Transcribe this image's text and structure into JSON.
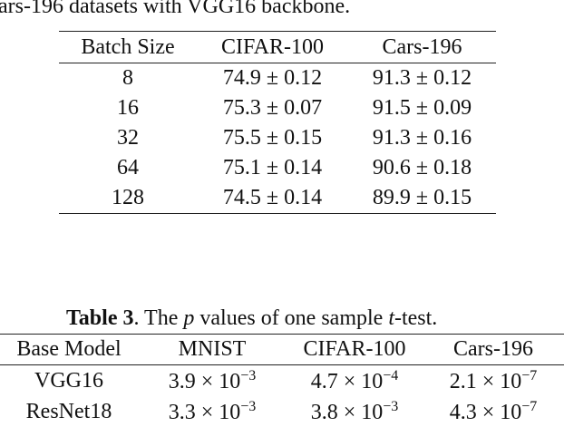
{
  "top_caption_fragment": "ars-196 datasets with VGG16 backbone.",
  "table1": {
    "headers": [
      "Batch Size",
      "CIFAR-100",
      "Cars-196"
    ],
    "rows": [
      [
        "8",
        "74.9 ± 0.12",
        "91.3 ± 0.12"
      ],
      [
        "16",
        "75.3 ± 0.07",
        "91.5 ± 0.09"
      ],
      [
        "32",
        "75.5 ± 0.15",
        "91.3 ± 0.16"
      ],
      [
        "64",
        "75.1 ± 0.14",
        "90.6 ± 0.18"
      ],
      [
        "128",
        "74.5 ± 0.14",
        "89.9 ± 0.15"
      ]
    ]
  },
  "table3": {
    "caption_label": "Table 3",
    "caption_text_1": ". The ",
    "caption_p": "p",
    "caption_text_2": " values of one sample ",
    "caption_t": "t",
    "caption_text_3": "-test.",
    "headers": [
      "Base Model",
      "MNIST",
      "CIFAR-100",
      "Cars-196"
    ],
    "rows": [
      {
        "model": "VGG16",
        "values": [
          {
            "m": "3.9",
            "e": "−3"
          },
          {
            "m": "4.7",
            "e": "−4"
          },
          {
            "m": "2.1",
            "e": "−7"
          }
        ]
      },
      {
        "model": "ResNet18",
        "values": [
          {
            "m": "3.3",
            "e": "−3"
          },
          {
            "m": "3.8",
            "e": "−3"
          },
          {
            "m": "4.3",
            "e": "−7"
          }
        ]
      }
    ],
    "times_symbol": " × 10"
  }
}
